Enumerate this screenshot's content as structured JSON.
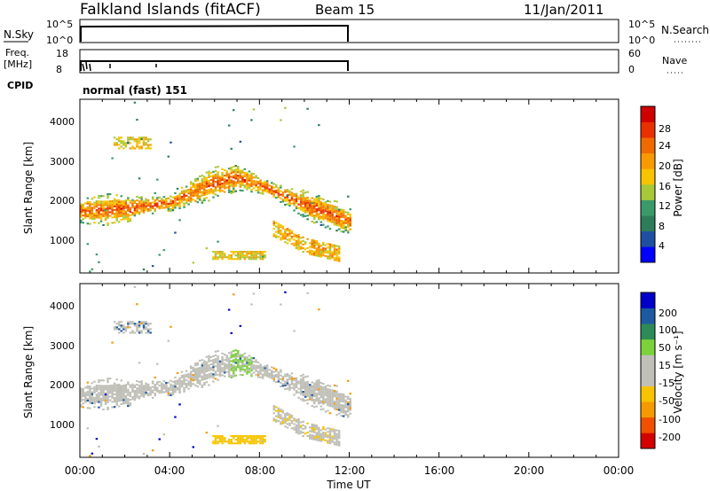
{
  "header": {
    "station": "Falkland Islands (fitACF)",
    "beam": "Beam 15",
    "date": "11/Jan/2011"
  },
  "small_panels": {
    "nsky_label": "N.Sky",
    "nsky_ticks": [
      "10^5",
      "10^0"
    ],
    "nsearch_label": "N.Search",
    "freq_label_1": "Freq.",
    "freq_label_2": "[MHz]",
    "freq_ticks": [
      "18",
      "8"
    ],
    "nave_label": "Nave",
    "nave_ticks": [
      "60",
      "0"
    ],
    "cpid_label": "CPID",
    "cpid_value": "normal (fast) 151"
  },
  "legend_colors": {
    "power": [
      "#0000ff",
      "#1e4fa0",
      "#2e7d5a",
      "#3b9a6a",
      "#a8c838",
      "#f7c400",
      "#f79a00",
      "#f06a00",
      "#e83000",
      "#d00000"
    ],
    "velocity": [
      "#d40000",
      "#f05000",
      "#f49a00",
      "#f7c400",
      "#c0c0b8",
      "#c0c0b8",
      "#7bd23a",
      "#2e8b57",
      "#1e5aa0",
      "#0000c8"
    ],
    "gray": "#bfbfb7"
  },
  "chart_data": [
    {
      "type": "heatmap",
      "name": "power",
      "ylabel": "Slant Range [km]",
      "xlabel": "Time UT",
      "x_ticks": [
        "00:00",
        "04:00",
        "08:00",
        "12:00",
        "16:00",
        "20:00",
        "00:00"
      ],
      "x_range_hours": [
        0,
        24
      ],
      "y_ticks": [
        "1000",
        "2000",
        "3000",
        "4000"
      ],
      "y_range_km": [
        180,
        4500
      ],
      "colorbar_label": "Power [dB]",
      "colorbar_ticks": [
        "4",
        "8",
        "12",
        "16",
        "20",
        "24",
        "28"
      ],
      "colorbar_range": [
        0,
        30
      ],
      "data_extent_hours": [
        0,
        12
      ],
      "features": [
        {
          "desc": "main band",
          "x_hours": [
            0.0,
            12.0
          ],
          "center_km_at_hours": [
            [
              0,
              1750
            ],
            [
              2,
              1800
            ],
            [
              4,
              1950
            ],
            [
              6,
              2450
            ],
            [
              7,
              2580
            ],
            [
              8,
              2400
            ],
            [
              10,
              1900
            ],
            [
              12,
              1500
            ]
          ],
          "power_db": 20
        },
        {
          "desc": "lower descending echo",
          "x_hours": [
            8.5,
            11.5
          ],
          "center_km_at_hours": [
            [
              8.5,
              1350
            ],
            [
              10,
              900
            ],
            [
              11.5,
              700
            ]
          ],
          "power_db": 18
        },
        {
          "desc": "near-range patch",
          "x_hours": [
            5.8,
            8.2
          ],
          "center_km": 640,
          "power_db": 16
        },
        {
          "desc": "upper patch",
          "x_hours": [
            1.5,
            3.2
          ],
          "center_km": 3450,
          "power_db": 16
        }
      ]
    },
    {
      "type": "heatmap",
      "name": "velocity",
      "ylabel": "Slant Range [km]",
      "xlabel": "Time UT",
      "x_ticks": [
        "00:00",
        "04:00",
        "08:00",
        "12:00",
        "16:00",
        "20:00",
        "00:00"
      ],
      "x_range_hours": [
        0,
        24
      ],
      "y_ticks": [
        "1000",
        "2000",
        "3000",
        "4000"
      ],
      "y_range_km": [
        180,
        4500
      ],
      "colorbar_label": "Velocity [m s⁻¹]",
      "colorbar_ticks": [
        "200",
        "100",
        "50",
        "15",
        "-15",
        "-50",
        "-100",
        "-200"
      ],
      "data_extent_hours": [
        0,
        12
      ],
      "features": [
        {
          "desc": "ground scatter band",
          "x_hours": [
            0.0,
            12.0
          ],
          "velocity_ms": 0
        },
        {
          "desc": "positive velocity patch",
          "x_hours": [
            6.6,
            7.6
          ],
          "center_km": 2500,
          "velocity_ms": 30
        },
        {
          "desc": "negative velocity near-range patch",
          "x_hours": [
            5.8,
            7.8
          ],
          "center_km": 600,
          "velocity_ms": -40
        }
      ]
    }
  ]
}
